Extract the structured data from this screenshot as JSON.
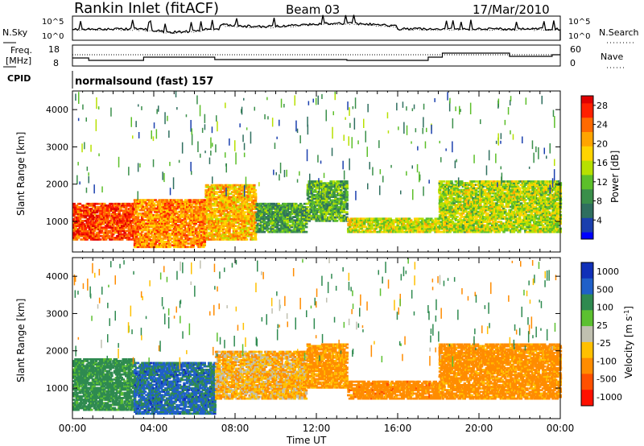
{
  "header": {
    "station": "Rankin Inlet (fitACF)",
    "beam": "Beam 03",
    "date": "17/Mar/2010"
  },
  "noise_panel": {
    "left_label": "N.Sky",
    "left_ticks": [
      "10^5",
      "10^0"
    ],
    "right_label": "N.Search",
    "right_ticks": [
      "10^5",
      "10^0"
    ]
  },
  "freq_panel": {
    "left_label_1": "Freq.",
    "left_label_2": "[MHz]",
    "left_ticks": [
      "18",
      "8"
    ],
    "right_label": "Nave",
    "right_ticks": [
      "60",
      "0"
    ]
  },
  "cpid": {
    "label": "CPID",
    "value": "normalsound (fast) 157"
  },
  "colors": {
    "power_scale": [
      "#0000ff",
      "#1a3fae",
      "#2f6f5f",
      "#3a8f4a",
      "#5cbf2a",
      "#b7e000",
      "#ffd400",
      "#ffa500",
      "#ff6a00",
      "#ff2000",
      "#e00000"
    ],
    "velocity_scale": [
      "#1030b8",
      "#2060c8",
      "#2f8a50",
      "#5cc030",
      "#c0c0b0",
      "#ffc000",
      "#ff8c00",
      "#ff5000",
      "#ff1000"
    ]
  },
  "chart_data": [
    {
      "type": "heatmap",
      "panel": "power",
      "ylabel": "Slant Range [km]",
      "yticks": [
        "1000",
        "2000",
        "3000",
        "4000"
      ],
      "ylim": [
        180,
        4500
      ],
      "xlim": [
        0,
        24
      ],
      "xticks": [
        "00:00",
        "04:00",
        "08:00",
        "12:00",
        "16:00",
        "20:00",
        "00:00"
      ],
      "colorbar_label": "Power [dB]",
      "colorbar_ticks": [
        "4",
        "8",
        "12",
        "16",
        "20",
        "24",
        "28"
      ],
      "colorbar_range": [
        0,
        30
      ],
      "bands": [
        {
          "t0": 0.0,
          "t1": 3.0,
          "r0": 500,
          "r1": 1500,
          "level": 26
        },
        {
          "t0": 3.0,
          "t1": 6.5,
          "r0": 300,
          "r1": 1600,
          "level": 22
        },
        {
          "t0": 6.5,
          "t1": 9.0,
          "r0": 500,
          "r1": 2000,
          "level": 20
        },
        {
          "t0": 9.0,
          "t1": 11.5,
          "r0": 700,
          "r1": 1500,
          "level": 10
        },
        {
          "t0": 11.5,
          "t1": 13.5,
          "r0": 1000,
          "r1": 2100,
          "level": 11
        },
        {
          "t0": 13.5,
          "t1": 18.0,
          "r0": 700,
          "r1": 1100,
          "level": 16
        },
        {
          "t0": 18.0,
          "t1": 24.0,
          "r0": 700,
          "r1": 2100,
          "level": 15
        }
      ]
    },
    {
      "type": "heatmap",
      "panel": "velocity",
      "ylabel": "Slant Range [km]",
      "yticks": [
        "1000",
        "2000",
        "3000",
        "4000"
      ],
      "ylim": [
        180,
        4500
      ],
      "xlim": [
        0,
        24
      ],
      "xticks": [
        "00:00",
        "04:00",
        "08:00",
        "12:00",
        "16:00",
        "20:00",
        "00:00"
      ],
      "xlabel": "Time UT",
      "colorbar_label": "Velocity [m s^-1]",
      "colorbar_ticks": [
        "1000",
        "500",
        "100",
        "25",
        "-25",
        "-100",
        "-500",
        "-1000"
      ],
      "bands": [
        {
          "t0": 0.0,
          "t1": 3.0,
          "r0": 400,
          "r1": 1800,
          "level": 200
        },
        {
          "t0": 3.0,
          "t1": 7.0,
          "r0": 300,
          "r1": 1700,
          "level": 600
        },
        {
          "t0": 7.0,
          "t1": 11.5,
          "r0": 700,
          "r1": 2000,
          "level": -80
        },
        {
          "t0": 11.5,
          "t1": 13.5,
          "r0": 1000,
          "r1": 2200,
          "level": -150
        },
        {
          "t0": 13.5,
          "t1": 18.0,
          "r0": 700,
          "r1": 1200,
          "level": -300
        },
        {
          "t0": 18.0,
          "t1": 24.0,
          "r0": 700,
          "r1": 2200,
          "level": -200
        }
      ]
    }
  ]
}
